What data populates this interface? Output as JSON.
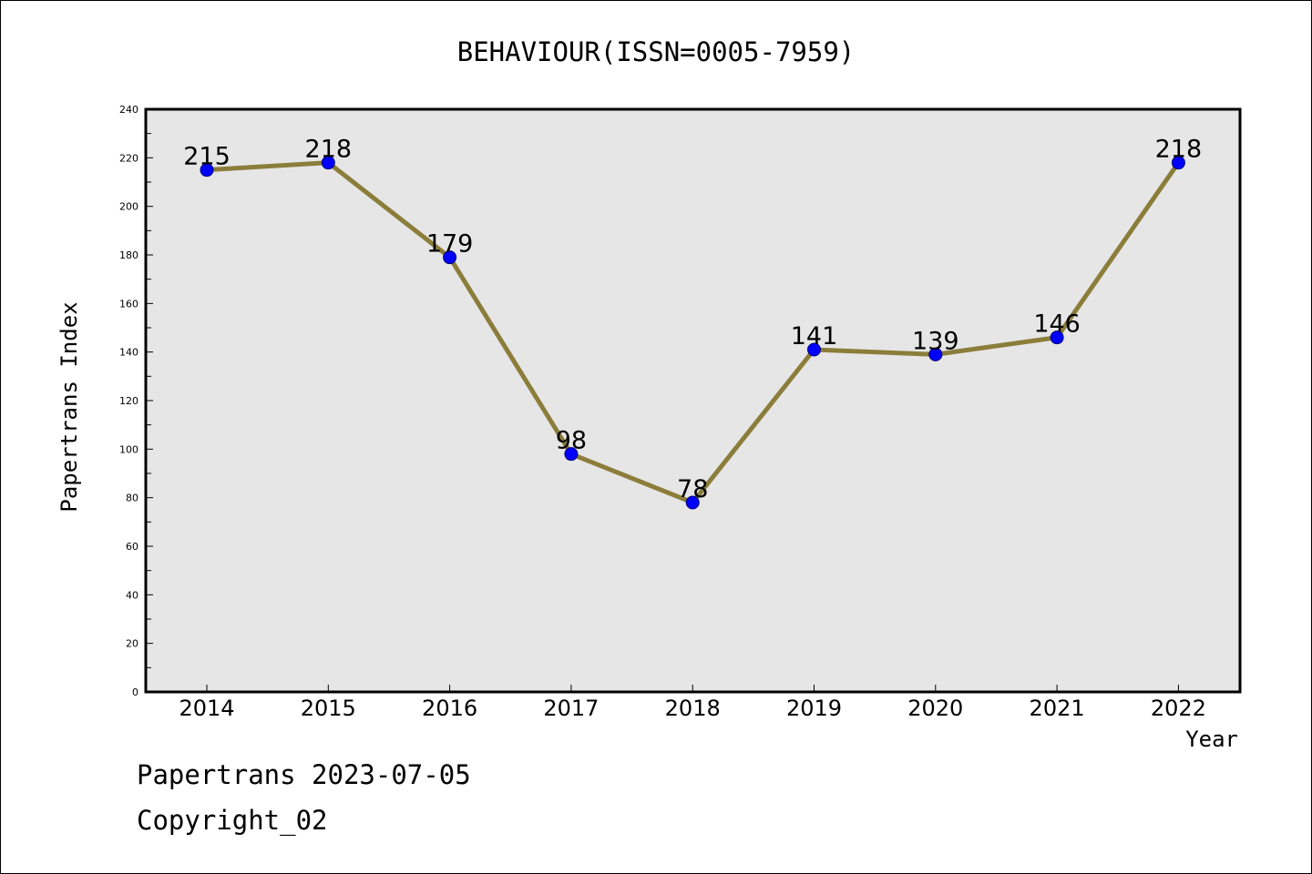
{
  "chart_data": {
    "type": "line",
    "title": "BEHAVIOUR(ISSN=0005-7959)",
    "xlabel": "Year",
    "ylabel": "Papertrans Index",
    "categories": [
      "2014",
      "2015",
      "2016",
      "2017",
      "2018",
      "2019",
      "2020",
      "2021",
      "2022"
    ],
    "series": [
      {
        "values": [
          215,
          218,
          179,
          98,
          78,
          141,
          139,
          146,
          218
        ]
      }
    ],
    "data_labels": [
      "215",
      "218",
      "179",
      "98",
      "78",
      "141",
      "139",
      "146",
      "218"
    ],
    "ylim": [
      0,
      240
    ],
    "yticks": [
      0,
      20,
      40,
      60,
      80,
      100,
      120,
      140,
      160,
      180,
      200,
      220,
      240
    ],
    "grid": false,
    "colors": {
      "line": "#8B7D3A",
      "marker": "#0000FF",
      "plot_background": "#E6E6E6"
    }
  },
  "footer": {
    "line1": "Papertrans 2023-07-05",
    "line2": "Copyright_02"
  }
}
